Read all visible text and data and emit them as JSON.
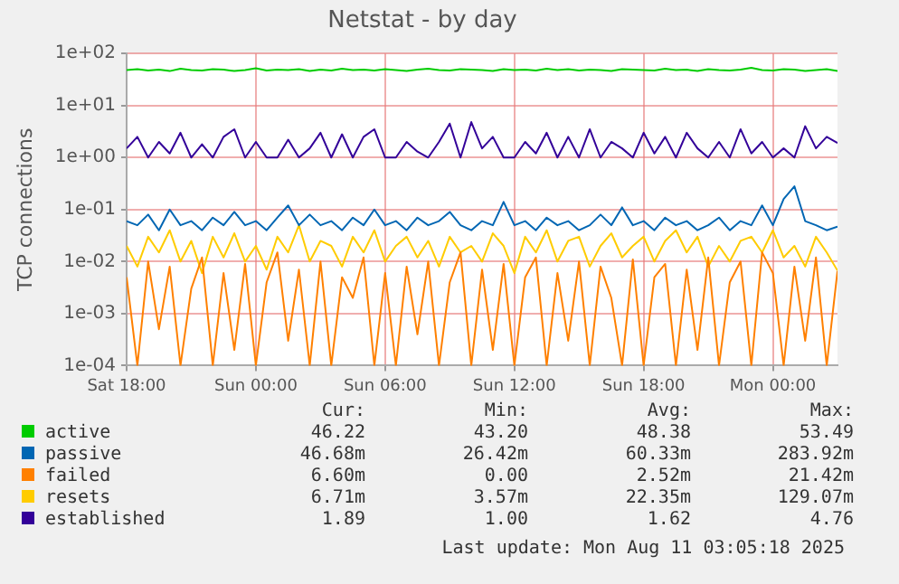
{
  "chart_data": {
    "type": "line",
    "title": "Netstat - by day",
    "ylabel": "TCP connections",
    "log": true,
    "grid": true,
    "legend": "bottom",
    "marker": "none",
    "line_style": "solid",
    "xlim": [
      "2025-08-09T18:00",
      "2025-08-11T03:00"
    ],
    "xticks": [
      {
        "value": "2025-08-09T18:00",
        "label": "Sat 18:00"
      },
      {
        "value": "2025-08-10T00:00",
        "label": "Sun 00:00"
      },
      {
        "value": "2025-08-10T06:00",
        "label": "Sun 06:00"
      },
      {
        "value": "2025-08-10T12:00",
        "label": "Sun 12:00"
      },
      {
        "value": "2025-08-10T18:00",
        "label": "Sun 18:00"
      },
      {
        "value": "2025-08-11T00:00",
        "label": "Mon 00:00"
      }
    ],
    "ylim": [
      0.0001,
      100
    ],
    "yticks": [
      {
        "value": 0.0001,
        "label": "1e-04"
      },
      {
        "value": 0.001,
        "label": "1e-03"
      },
      {
        "value": 0.01,
        "label": "1e-02"
      },
      {
        "value": 0.1,
        "label": "1e-01"
      },
      {
        "value": 1,
        "label": "1e+00"
      },
      {
        "value": 10,
        "label": "1e+01"
      },
      {
        "value": 100,
        "label": "1e+02"
      }
    ],
    "x": [
      "2025-08-09T18:00",
      "2025-08-09T18:30",
      "2025-08-09T19:00",
      "2025-08-09T19:30",
      "2025-08-09T20:00",
      "2025-08-09T20:30",
      "2025-08-09T21:00",
      "2025-08-09T21:30",
      "2025-08-09T22:00",
      "2025-08-09T22:30",
      "2025-08-09T23:00",
      "2025-08-09T23:30",
      "2025-08-10T00:00",
      "2025-08-10T00:30",
      "2025-08-10T01:00",
      "2025-08-10T01:30",
      "2025-08-10T02:00",
      "2025-08-10T02:30",
      "2025-08-10T03:00",
      "2025-08-10T03:30",
      "2025-08-10T04:00",
      "2025-08-10T04:30",
      "2025-08-10T05:00",
      "2025-08-10T05:30",
      "2025-08-10T06:00",
      "2025-08-10T06:30",
      "2025-08-10T07:00",
      "2025-08-10T07:30",
      "2025-08-10T08:00",
      "2025-08-10T08:30",
      "2025-08-10T09:00",
      "2025-08-10T09:30",
      "2025-08-10T10:00",
      "2025-08-10T10:30",
      "2025-08-10T11:00",
      "2025-08-10T11:30",
      "2025-08-10T12:00",
      "2025-08-10T12:30",
      "2025-08-10T13:00",
      "2025-08-10T13:30",
      "2025-08-10T14:00",
      "2025-08-10T14:30",
      "2025-08-10T15:00",
      "2025-08-10T15:30",
      "2025-08-10T16:00",
      "2025-08-10T16:30",
      "2025-08-10T17:00",
      "2025-08-10T17:30",
      "2025-08-10T18:00",
      "2025-08-10T18:30",
      "2025-08-10T19:00",
      "2025-08-10T19:30",
      "2025-08-10T20:00",
      "2025-08-10T20:30",
      "2025-08-10T21:00",
      "2025-08-10T21:30",
      "2025-08-10T22:00",
      "2025-08-10T22:30",
      "2025-08-10T23:00",
      "2025-08-10T23:30",
      "2025-08-11T00:00",
      "2025-08-11T00:30",
      "2025-08-11T01:00",
      "2025-08-11T01:30",
      "2025-08-11T02:00",
      "2025-08-11T02:30",
      "2025-08-11T03:00"
    ],
    "series": [
      {
        "name": "active",
        "color": "#00cc00",
        "values": [
          48,
          50,
          47,
          49,
          46,
          51,
          48,
          47,
          50,
          49,
          46,
          48,
          52,
          47,
          49,
          48,
          50,
          46,
          49,
          47,
          51,
          48,
          49,
          47,
          50,
          48,
          46,
          49,
          51,
          48,
          47,
          50,
          49,
          48,
          46,
          50,
          48,
          49,
          47,
          51,
          48,
          50,
          47,
          49,
          48,
          46,
          50,
          49,
          48,
          47,
          51,
          48,
          49,
          46,
          50,
          48,
          47,
          49,
          53,
          48,
          47,
          50,
          49,
          46,
          48,
          50,
          46
        ]
      },
      {
        "name": "passive",
        "color": "#0066b3",
        "values": [
          0.06,
          0.05,
          0.08,
          0.04,
          0.1,
          0.05,
          0.06,
          0.04,
          0.07,
          0.05,
          0.09,
          0.05,
          0.06,
          0.04,
          0.07,
          0.12,
          0.05,
          0.08,
          0.05,
          0.06,
          0.04,
          0.07,
          0.05,
          0.1,
          0.05,
          0.06,
          0.04,
          0.07,
          0.05,
          0.06,
          0.09,
          0.05,
          0.04,
          0.06,
          0.05,
          0.14,
          0.05,
          0.06,
          0.04,
          0.07,
          0.05,
          0.06,
          0.04,
          0.05,
          0.08,
          0.05,
          0.11,
          0.05,
          0.06,
          0.04,
          0.07,
          0.05,
          0.06,
          0.04,
          0.05,
          0.07,
          0.04,
          0.06,
          0.05,
          0.12,
          0.05,
          0.16,
          0.28,
          0.06,
          0.05,
          0.04,
          0.047
        ]
      },
      {
        "name": "failed",
        "color": "#ff8000",
        "values": [
          0.005,
          0.0001,
          0.01,
          0.0005,
          0.008,
          0.0001,
          0.003,
          0.012,
          0.0001,
          0.006,
          0.0002,
          0.009,
          0.0001,
          0.004,
          0.015,
          0.0003,
          0.007,
          0.0001,
          0.01,
          0.0001,
          0.005,
          0.002,
          0.012,
          0.0001,
          0.006,
          0.0001,
          0.008,
          0.0004,
          0.01,
          0.0001,
          0.004,
          0.015,
          0.0001,
          0.007,
          0.0002,
          0.009,
          0.0001,
          0.005,
          0.012,
          0.0001,
          0.006,
          0.0003,
          0.01,
          0.0001,
          0.008,
          0.002,
          0.0001,
          0.011,
          0.0001,
          0.005,
          0.009,
          0.0001,
          0.007,
          0.0002,
          0.012,
          0.0001,
          0.004,
          0.01,
          0.0001,
          0.015,
          0.006,
          0.0001,
          0.008,
          0.0003,
          0.012,
          0.0001,
          0.0066
        ]
      },
      {
        "name": "resets",
        "color": "#ffcc00",
        "values": [
          0.02,
          0.008,
          0.03,
          0.015,
          0.04,
          0.01,
          0.025,
          0.006,
          0.03,
          0.012,
          0.035,
          0.01,
          0.02,
          0.007,
          0.03,
          0.015,
          0.05,
          0.01,
          0.025,
          0.02,
          0.008,
          0.03,
          0.015,
          0.04,
          0.01,
          0.02,
          0.03,
          0.012,
          0.025,
          0.008,
          0.03,
          0.015,
          0.02,
          0.01,
          0.035,
          0.02,
          0.006,
          0.03,
          0.015,
          0.04,
          0.01,
          0.025,
          0.03,
          0.008,
          0.02,
          0.035,
          0.012,
          0.02,
          0.03,
          0.01,
          0.025,
          0.04,
          0.015,
          0.03,
          0.008,
          0.02,
          0.01,
          0.025,
          0.03,
          0.015,
          0.04,
          0.012,
          0.02,
          0.008,
          0.03,
          0.015,
          0.0067
        ]
      },
      {
        "name": "established",
        "color": "#330099",
        "values": [
          1.5,
          2.5,
          1,
          2,
          1.2,
          3,
          1,
          1.8,
          1,
          2.5,
          3.5,
          1,
          2,
          1,
          1,
          2.2,
          1,
          1.5,
          3,
          1,
          2.8,
          1,
          2.5,
          3.5,
          1,
          1,
          2,
          1.3,
          1,
          2,
          4.5,
          1,
          4.8,
          1.5,
          2.5,
          1,
          1,
          2,
          1.2,
          3,
          1,
          2.5,
          1,
          3.5,
          1,
          2,
          1.5,
          1,
          3,
          1.2,
          2.5,
          1,
          3,
          1.5,
          1,
          2,
          1,
          3.5,
          1.2,
          2,
          1,
          1.5,
          1,
          4,
          1.5,
          2.5,
          1.9
        ]
      }
    ],
    "annotations": [
      "Cur:",
      "Min:",
      "Avg:",
      "Max:",
      "46.22",
      "43.20",
      "48.38",
      "53.49",
      "46.68m",
      "26.42m",
      "60.33m",
      "283.92m",
      "6.60m",
      "0.00",
      "2.52m",
      "21.42m",
      "6.71m",
      "3.57m",
      "22.35m",
      "129.07m",
      "1.89",
      "1.00",
      "1.62",
      "4.76",
      "Last update: Mon Aug 11 03:05:18 2025"
    ]
  }
}
